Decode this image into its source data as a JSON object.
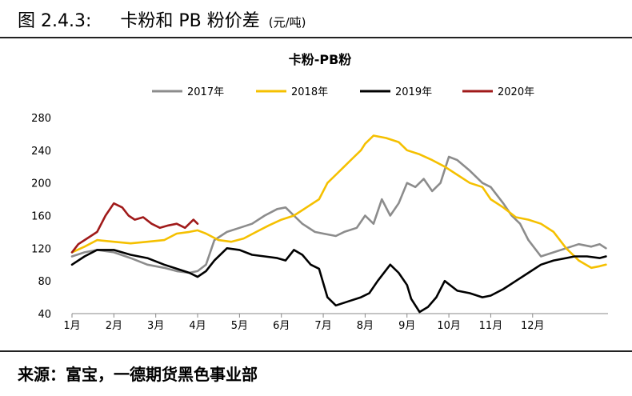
{
  "figure": {
    "label": "图 2.4.3:",
    "title": "卡粉和 PB 粉价差",
    "unit": "(元/吨)"
  },
  "source": "来源：富宝，一德期货黑色事业部",
  "chart_data": {
    "type": "line",
    "title": "卡粉-PB粉",
    "ylim": [
      40,
      280
    ],
    "yticks": [
      40,
      80,
      120,
      160,
      200,
      240,
      280
    ],
    "xlim": [
      0,
      12.8
    ],
    "xticks": [
      {
        "pos": 0,
        "label": "1月"
      },
      {
        "pos": 1,
        "label": "2月"
      },
      {
        "pos": 2,
        "label": "3月"
      },
      {
        "pos": 3,
        "label": "4月"
      },
      {
        "pos": 4,
        "label": "5月"
      },
      {
        "pos": 5,
        "label": "6月"
      },
      {
        "pos": 6,
        "label": "7月"
      },
      {
        "pos": 7,
        "label": "8月"
      },
      {
        "pos": 8,
        "label": "9月"
      },
      {
        "pos": 9,
        "label": "10月"
      },
      {
        "pos": 10,
        "label": "11月"
      },
      {
        "pos": 11,
        "label": "12月"
      }
    ],
    "grid": false,
    "legend": "top-center",
    "series": [
      {
        "name": "2017年",
        "color": "#8c8c8c",
        "x": [
          0,
          0.3,
          0.6,
          1.0,
          1.4,
          1.8,
          2.2,
          2.5,
          2.8,
          3.0,
          3.2,
          3.4,
          3.7,
          4.0,
          4.3,
          4.6,
          4.9,
          5.1,
          5.3,
          5.5,
          5.8,
          6.0,
          6.3,
          6.5,
          6.8,
          7.0,
          7.2,
          7.4,
          7.6,
          7.8,
          8.0,
          8.2,
          8.4,
          8.6,
          8.8,
          9.0,
          9.2,
          9.5,
          9.8,
          10.0,
          10.3,
          10.5,
          10.7,
          10.9,
          11.2,
          11.5,
          11.8,
          12.1,
          12.4,
          12.6,
          12.75
        ],
        "y": [
          110,
          115,
          118,
          115,
          108,
          100,
          96,
          92,
          90,
          92,
          100,
          130,
          140,
          145,
          150,
          160,
          168,
          170,
          160,
          150,
          140,
          138,
          135,
          140,
          145,
          160,
          150,
          180,
          160,
          175,
          200,
          195,
          205,
          190,
          200,
          232,
          228,
          215,
          200,
          195,
          175,
          160,
          150,
          130,
          110,
          115,
          120,
          125,
          122,
          125,
          120
        ]
      },
      {
        "name": "2018年",
        "color": "#f5c000",
        "x": [
          0,
          0.3,
          0.6,
          1.0,
          1.4,
          1.8,
          2.2,
          2.5,
          2.8,
          3.0,
          3.2,
          3.5,
          3.8,
          4.1,
          4.4,
          4.7,
          5.0,
          5.3,
          5.6,
          5.9,
          6.1,
          6.3,
          6.5,
          6.7,
          6.9,
          7.0,
          7.2,
          7.5,
          7.8,
          8.0,
          8.3,
          8.6,
          8.9,
          9.2,
          9.5,
          9.8,
          10.0,
          10.3,
          10.6,
          10.9,
          11.2,
          11.5,
          11.8,
          12.1,
          12.4,
          12.6,
          12.75
        ],
        "y": [
          115,
          122,
          130,
          128,
          126,
          128,
          130,
          138,
          140,
          142,
          138,
          130,
          128,
          132,
          140,
          148,
          155,
          160,
          170,
          180,
          200,
          210,
          220,
          230,
          240,
          248,
          258,
          255,
          250,
          240,
          235,
          228,
          220,
          210,
          200,
          195,
          180,
          170,
          158,
          155,
          150,
          140,
          120,
          105,
          96,
          98,
          100
        ]
      },
      {
        "name": "2019年",
        "color": "#000000",
        "x": [
          0,
          0.3,
          0.6,
          1.0,
          1.4,
          1.8,
          2.2,
          2.5,
          2.8,
          3.0,
          3.2,
          3.4,
          3.7,
          4.0,
          4.3,
          4.6,
          4.9,
          5.1,
          5.3,
          5.5,
          5.7,
          5.9,
          6.1,
          6.3,
          6.6,
          6.9,
          7.1,
          7.3,
          7.6,
          7.8,
          8.0,
          8.1,
          8.3,
          8.5,
          8.7,
          8.9,
          9.2,
          9.5,
          9.8,
          10.0,
          10.3,
          10.6,
          10.9,
          11.2,
          11.5,
          11.8,
          12.0,
          12.3,
          12.6,
          12.75
        ],
        "y": [
          100,
          110,
          118,
          118,
          112,
          108,
          100,
          95,
          90,
          85,
          92,
          105,
          120,
          118,
          112,
          110,
          108,
          105,
          118,
          112,
          100,
          95,
          60,
          50,
          55,
          60,
          65,
          80,
          100,
          90,
          75,
          58,
          42,
          48,
          60,
          80,
          68,
          65,
          60,
          62,
          70,
          80,
          90,
          100,
          105,
          108,
          110,
          110,
          108,
          110
        ]
      },
      {
        "name": "2020年",
        "color": "#a01a1a",
        "x": [
          0,
          0.15,
          0.3,
          0.45,
          0.6,
          0.8,
          1.0,
          1.2,
          1.35,
          1.5,
          1.7,
          1.9,
          2.1,
          2.3,
          2.5,
          2.7,
          2.9,
          3.0
        ],
        "y": [
          115,
          125,
          130,
          135,
          140,
          160,
          175,
          170,
          160,
          155,
          158,
          150,
          145,
          148,
          150,
          145,
          155,
          150
        ]
      }
    ]
  }
}
